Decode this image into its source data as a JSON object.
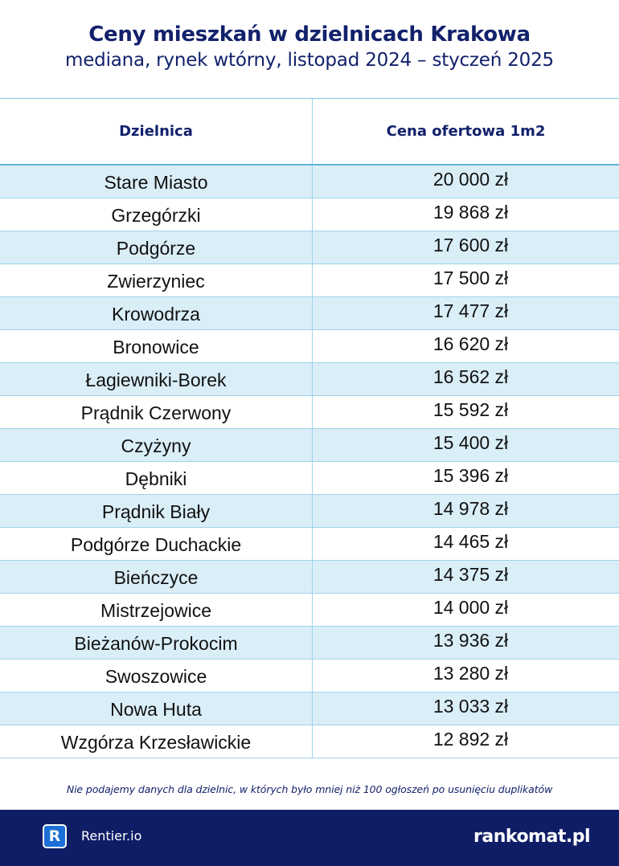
{
  "header": {
    "title": "Ceny mieszkań w dzielnicach Krakowa",
    "subtitle": "mediana, rynek wtórny, listopad 2024 – styczeń 2025"
  },
  "table": {
    "columns": [
      "Dzielnica",
      "Cena ofertowa 1m2"
    ],
    "rows": [
      {
        "district": "Stare Miasto",
        "price": "20 000 zł"
      },
      {
        "district": "Grzegórzki",
        "price": "19 868 zł"
      },
      {
        "district": "Podgórze",
        "price": "17 600 zł"
      },
      {
        "district": "Zwierzyniec",
        "price": "17 500 zł"
      },
      {
        "district": "Krowodrza",
        "price": "17 477 zł"
      },
      {
        "district": "Bronowice",
        "price": "16 620 zł"
      },
      {
        "district": "Łagiewniki-Borek",
        "price": "16 562 zł"
      },
      {
        "district": "Prądnik Czerwony",
        "price": "15 592 zł"
      },
      {
        "district": "Czyżyny",
        "price": "15 400 zł"
      },
      {
        "district": "Dębniki",
        "price": "15 396 zł"
      },
      {
        "district": "Prądnik Biały",
        "price": "14 978  zł"
      },
      {
        "district": "Podgórze Duchackie",
        "price": "14 465 zł"
      },
      {
        "district": "Bieńczyce",
        "price": "14 375 zł"
      },
      {
        "district": "Mistrzejowice",
        "price": "14 000 zł"
      },
      {
        "district": "Bieżanów-Prokocim",
        "price": "13 936 zł"
      },
      {
        "district": "Swoszowice",
        "price": "13 280 zł"
      },
      {
        "district": "Nowa Huta",
        "price": "13 033 zł"
      },
      {
        "district": "Wzgórza Krzesławickie",
        "price": "12 892 zł"
      }
    ]
  },
  "note": "Nie podajemy danych dla dzielnic, w których było mniej niż 100 ogłoszeń po usunięciu duplikatów",
  "footer": {
    "left_logo_letter": "R",
    "left_brand": "Rentier.io",
    "right_brand": "rankomat.pl"
  },
  "colors": {
    "title": "#12216b",
    "row_stripe": "#daeef8",
    "grid": "#9fd3ea",
    "footer_bg": "#0f1d66",
    "logo_blue": "#1c6fd6"
  }
}
